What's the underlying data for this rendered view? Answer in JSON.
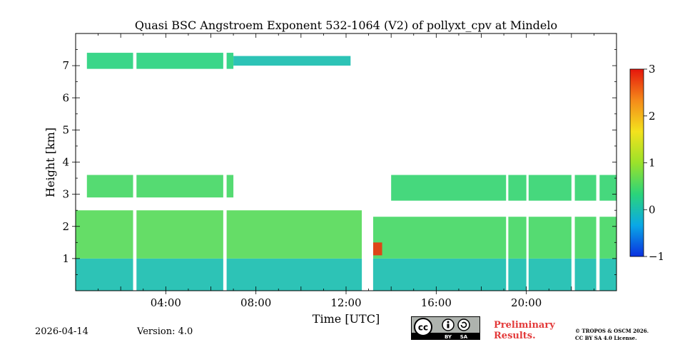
{
  "chart_data": {
    "type": "heatmap",
    "title": "Quasi BSC Angstroem Exponent 532-1064 (V2) of pollyxt_cpv at Mindelo",
    "xlabel": "Time [UTC]",
    "ylabel": "Height [km]",
    "xlim": [
      0,
      24
    ],
    "ylim": [
      0,
      8
    ],
    "xticks": [
      4,
      8,
      12,
      16,
      20
    ],
    "xtick_labels": [
      "04:00",
      "08:00",
      "12:00",
      "16:00",
      "20:00"
    ],
    "yticks": [
      1,
      2,
      3,
      4,
      5,
      6,
      7
    ],
    "ytick_labels": [
      "1",
      "2",
      "3",
      "4",
      "5",
      "6",
      "7"
    ],
    "colorbar": {
      "min": -1,
      "max": 3,
      "ticks": [
        -1,
        0,
        1,
        2,
        3
      ],
      "tick_labels": [
        "−1",
        "0",
        "1",
        "2",
        "3"
      ],
      "colormap": "jet",
      "colors": [
        "#0a30e0",
        "#0aa8e6",
        "#2bd47a",
        "#9be22a",
        "#f3e21d",
        "#f58a1a",
        "#e5160c"
      ]
    },
    "layers": [
      {
        "name": "near-surface",
        "t_start": 0,
        "t_end": 24,
        "h_bottom": 0.0,
        "h_top": 1.0,
        "value": 0.0
      },
      {
        "name": "boundary-layer",
        "t_start": 0,
        "t_end": 12.7,
        "h_bottom": 1.0,
        "h_top": 2.5,
        "value": 0.6
      },
      {
        "name": "boundary-layer-pm",
        "t_start": 13.2,
        "t_end": 24,
        "h_bottom": 1.0,
        "h_top": 2.3,
        "value": 0.5
      },
      {
        "name": "elevated-layer-am",
        "t_start": 0.5,
        "t_end": 7.0,
        "h_bottom": 2.9,
        "h_top": 3.6,
        "value": 0.5
      },
      {
        "name": "elevated-layer-pm",
        "t_start": 14.0,
        "t_end": 24,
        "h_bottom": 2.8,
        "h_top": 3.6,
        "value": 0.4
      },
      {
        "name": "upper-layer",
        "t_start": 0.5,
        "t_end": 7.0,
        "h_bottom": 6.9,
        "h_top": 7.4,
        "value": 0.3
      },
      {
        "name": "upper-layer-tail",
        "t_start": 7.0,
        "t_end": 12.2,
        "h_bottom": 7.0,
        "h_top": 7.3,
        "value": 0.0
      },
      {
        "name": "local-max",
        "t_start": 13.2,
        "t_end": 13.6,
        "h_bottom": 1.1,
        "h_top": 1.5,
        "value": 2.8
      }
    ],
    "data_gaps": [
      [
        2.55,
        2.7
      ],
      [
        6.55,
        6.7
      ],
      [
        12.7,
        13.2
      ],
      [
        19.1,
        19.2
      ],
      [
        20.0,
        20.1
      ],
      [
        22.0,
        22.15
      ],
      [
        23.1,
        23.25
      ]
    ]
  },
  "footer": {
    "date": "2026-04-14",
    "version": "Version: 4.0",
    "license_logo": "CC BY SA",
    "license_logo_parts": [
      "cc",
      "BY",
      "SA"
    ],
    "preliminary_line1": "Preliminary",
    "preliminary_line2": "Results.",
    "copyright_line1": "© TROPOS & OSCM 2026.",
    "copyright_line2": "CC BY SA 4.0 License."
  }
}
